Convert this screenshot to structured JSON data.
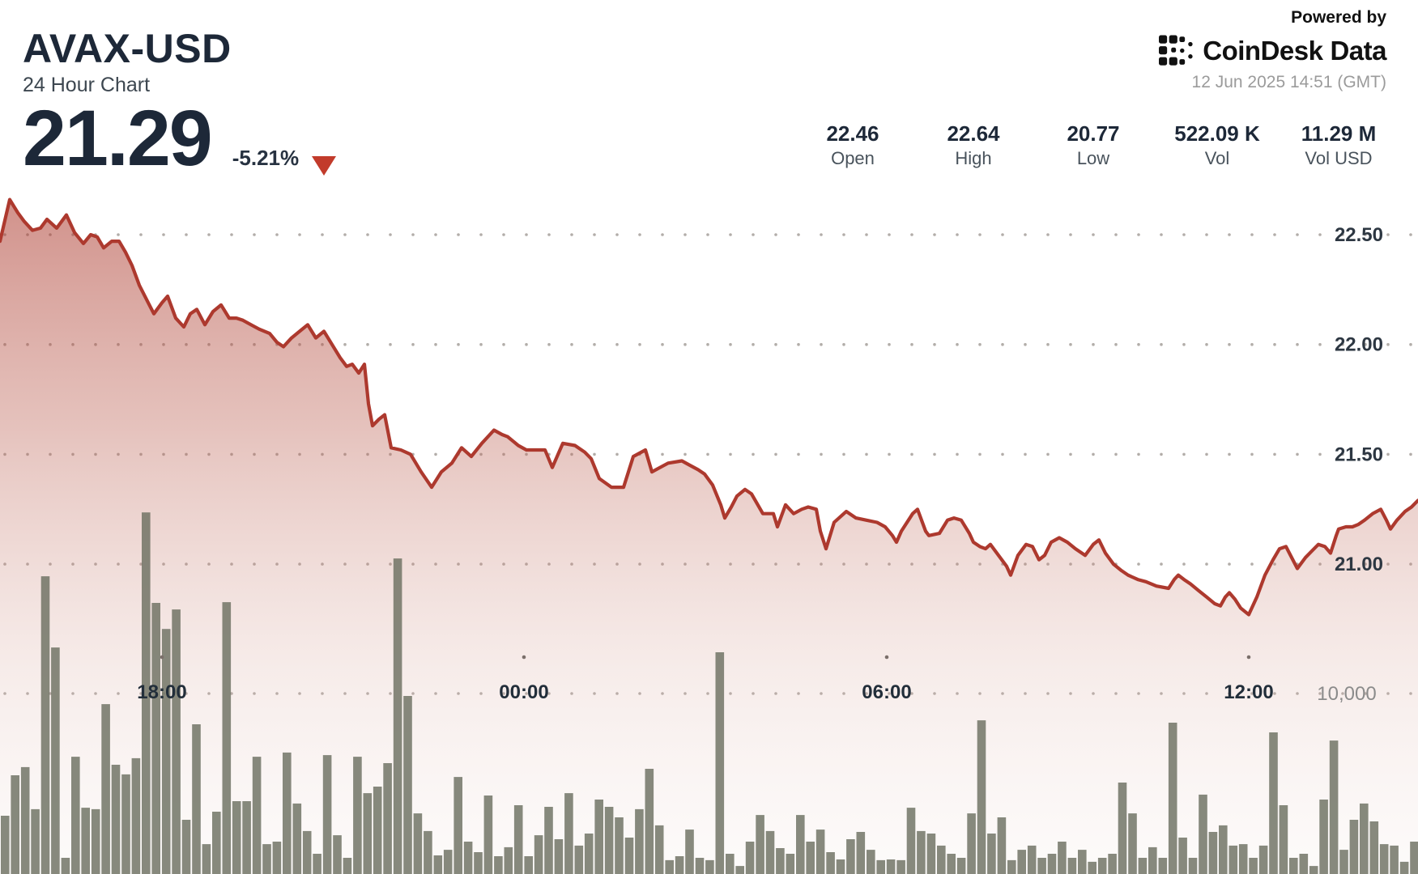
{
  "header": {
    "symbol": "AVAX-USD",
    "subtitle": "24 Hour Chart",
    "price": "21.29",
    "change_pct": "-5.21%",
    "direction_icon": "down-triangle",
    "change_color": "#c23b2b"
  },
  "stats": [
    {
      "value": "22.46",
      "label": "Open"
    },
    {
      "value": "22.64",
      "label": "High"
    },
    {
      "value": "20.77",
      "label": "Low"
    },
    {
      "value": "522.09 K",
      "label": "Vol"
    },
    {
      "value": "11.29 M",
      "label": "Vol USD"
    }
  ],
  "branding": {
    "powered_by": "Powered by",
    "brand_icon": "coindesk-logo-icon",
    "brand_name": "CoinDesk",
    "brand_suffix": "Data",
    "timestamp": "12 Jun 2025 14:51 (GMT)"
  },
  "chart_data": {
    "type": "area+bar",
    "title": "AVAX-USD 24 Hour Chart",
    "open": 22.46,
    "high": 22.64,
    "low": 20.77,
    "close": 21.29,
    "change_pct": -5.21,
    "volume": "522.09 K",
    "volume_usd": "11.29 M",
    "line_color": "#ad392e",
    "bar_color": "#696d5e",
    "grid_dot_color": "#a59f9a",
    "price_axis": {
      "ticks": [
        22.5,
        22.0,
        21.5,
        21.0
      ],
      "labels": [
        "22.50",
        "22.00",
        "21.50",
        "21.00"
      ]
    },
    "time_axis": {
      "labels": [
        "18:00",
        "00:00",
        "06:00",
        "12:00"
      ]
    },
    "volume_axis": {
      "tick": 10000,
      "label": "10,000"
    },
    "ylim": [
      20.6,
      22.75
    ],
    "legend": "none",
    "price_points": [
      [
        0,
        22.47
      ],
      [
        12,
        22.66
      ],
      [
        22,
        22.6
      ],
      [
        30,
        22.56
      ],
      [
        40,
        22.52
      ],
      [
        50,
        22.53
      ],
      [
        58,
        22.57
      ],
      [
        70,
        22.53
      ],
      [
        82,
        22.59
      ],
      [
        92,
        22.51
      ],
      [
        103,
        22.46
      ],
      [
        112,
        22.5
      ],
      [
        120,
        22.49
      ],
      [
        128,
        22.44
      ],
      [
        138,
        22.47
      ],
      [
        147,
        22.47
      ],
      [
        155,
        22.42
      ],
      [
        163,
        22.36
      ],
      [
        172,
        22.27
      ],
      [
        183,
        22.19
      ],
      [
        190,
        22.14
      ],
      [
        200,
        22.19
      ],
      [
        207,
        22.22
      ],
      [
        217,
        22.12
      ],
      [
        227,
        22.08
      ],
      [
        235,
        22.14
      ],
      [
        243,
        22.16
      ],
      [
        253,
        22.09
      ],
      [
        263,
        22.15
      ],
      [
        273,
        22.18
      ],
      [
        283,
        22.12
      ],
      [
        292,
        22.12
      ],
      [
        300,
        22.11
      ],
      [
        310,
        22.09
      ],
      [
        320,
        22.07
      ],
      [
        333,
        22.05
      ],
      [
        342,
        22.01
      ],
      [
        350,
        21.99
      ],
      [
        360,
        22.03
      ],
      [
        370,
        22.06
      ],
      [
        380,
        22.09
      ],
      [
        390,
        22.03
      ],
      [
        400,
        22.06
      ],
      [
        410,
        22.0
      ],
      [
        420,
        21.94
      ],
      [
        428,
        21.9
      ],
      [
        435,
        21.91
      ],
      [
        443,
        21.87
      ],
      [
        450,
        21.91
      ],
      [
        455,
        21.73
      ],
      [
        460,
        21.63
      ],
      [
        468,
        21.66
      ],
      [
        475,
        21.68
      ],
      [
        483,
        21.53
      ],
      [
        495,
        21.52
      ],
      [
        507,
        21.5
      ],
      [
        520,
        21.42
      ],
      [
        533,
        21.35
      ],
      [
        545,
        21.42
      ],
      [
        558,
        21.46
      ],
      [
        570,
        21.53
      ],
      [
        582,
        21.49
      ],
      [
        595,
        21.55
      ],
      [
        610,
        21.61
      ],
      [
        620,
        21.59
      ],
      [
        627,
        21.58
      ],
      [
        640,
        21.54
      ],
      [
        650,
        21.52
      ],
      [
        663,
        21.52
      ],
      [
        673,
        21.52
      ],
      [
        682,
        21.44
      ],
      [
        695,
        21.55
      ],
      [
        710,
        21.54
      ],
      [
        722,
        21.51
      ],
      [
        730,
        21.48
      ],
      [
        740,
        21.39
      ],
      [
        755,
        21.35
      ],
      [
        770,
        21.35
      ],
      [
        782,
        21.49
      ],
      [
        797,
        21.52
      ],
      [
        805,
        21.42
      ],
      [
        815,
        21.44
      ],
      [
        825,
        21.46
      ],
      [
        842,
        21.47
      ],
      [
        852,
        21.45
      ],
      [
        862,
        21.43
      ],
      [
        870,
        21.41
      ],
      [
        880,
        21.36
      ],
      [
        890,
        21.27
      ],
      [
        895,
        21.21
      ],
      [
        903,
        21.26
      ],
      [
        910,
        21.31
      ],
      [
        920,
        21.34
      ],
      [
        928,
        21.32
      ],
      [
        942,
        21.23
      ],
      [
        955,
        21.23
      ],
      [
        960,
        21.17
      ],
      [
        970,
        21.27
      ],
      [
        980,
        21.23
      ],
      [
        990,
        21.25
      ],
      [
        998,
        21.26
      ],
      [
        1008,
        21.25
      ],
      [
        1013,
        21.15
      ],
      [
        1020,
        21.07
      ],
      [
        1030,
        21.19
      ],
      [
        1045,
        21.24
      ],
      [
        1057,
        21.21
      ],
      [
        1070,
        21.2
      ],
      [
        1083,
        21.19
      ],
      [
        1093,
        21.17
      ],
      [
        1102,
        21.13
      ],
      [
        1107,
        21.1
      ],
      [
        1113,
        21.15
      ],
      [
        1127,
        21.23
      ],
      [
        1133,
        21.25
      ],
      [
        1143,
        21.15
      ],
      [
        1147,
        21.13
      ],
      [
        1160,
        21.14
      ],
      [
        1170,
        21.2
      ],
      [
        1178,
        21.21
      ],
      [
        1187,
        21.2
      ],
      [
        1197,
        21.14
      ],
      [
        1202,
        21.1
      ],
      [
        1210,
        21.08
      ],
      [
        1217,
        21.07
      ],
      [
        1223,
        21.09
      ],
      [
        1233,
        21.04
      ],
      [
        1243,
        20.99
      ],
      [
        1248,
        20.95
      ],
      [
        1257,
        21.04
      ],
      [
        1267,
        21.09
      ],
      [
        1275,
        21.08
      ],
      [
        1283,
        21.02
      ],
      [
        1290,
        21.04
      ],
      [
        1298,
        21.1
      ],
      [
        1308,
        21.12
      ],
      [
        1318,
        21.1
      ],
      [
        1328,
        21.07
      ],
      [
        1340,
        21.04
      ],
      [
        1350,
        21.09
      ],
      [
        1357,
        21.11
      ],
      [
        1365,
        21.05
      ],
      [
        1375,
        21.0
      ],
      [
        1385,
        20.97
      ],
      [
        1393,
        20.95
      ],
      [
        1405,
        20.93
      ],
      [
        1415,
        20.92
      ],
      [
        1428,
        20.9
      ],
      [
        1443,
        20.89
      ],
      [
        1450,
        20.93
      ],
      [
        1455,
        20.95
      ],
      [
        1462,
        20.93
      ],
      [
        1470,
        20.91
      ],
      [
        1480,
        20.88
      ],
      [
        1490,
        20.85
      ],
      [
        1500,
        20.82
      ],
      [
        1507,
        20.81
      ],
      [
        1513,
        20.85
      ],
      [
        1518,
        20.87
      ],
      [
        1525,
        20.84
      ],
      [
        1532,
        20.8
      ],
      [
        1542,
        20.77
      ],
      [
        1552,
        20.85
      ],
      [
        1562,
        20.95
      ],
      [
        1572,
        21.02
      ],
      [
        1580,
        21.07
      ],
      [
        1588,
        21.08
      ],
      [
        1595,
        21.03
      ],
      [
        1602,
        20.98
      ],
      [
        1612,
        21.03
      ],
      [
        1620,
        21.06
      ],
      [
        1628,
        21.09
      ],
      [
        1636,
        21.08
      ],
      [
        1643,
        21.05
      ],
      [
        1650,
        21.13
      ],
      [
        1653,
        21.16
      ],
      [
        1662,
        21.17
      ],
      [
        1670,
        21.17
      ],
      [
        1677,
        21.18
      ],
      [
        1685,
        21.2
      ],
      [
        1695,
        21.23
      ],
      [
        1705,
        21.25
      ],
      [
        1712,
        21.2
      ],
      [
        1717,
        21.16
      ],
      [
        1725,
        21.2
      ],
      [
        1735,
        21.24
      ],
      [
        1743,
        21.26
      ],
      [
        1751,
        21.29
      ]
    ],
    "volumes": [
      3200,
      5420,
      5870,
      3560,
      16350,
      12440,
      890,
      6440,
      3640,
      3560,
      9330,
      6000,
      5470,
      6360,
      19860,
      14890,
      13460,
      14530,
      2980,
      8220,
      1640,
      3420,
      14930,
      4000,
      4000,
      6440,
      1640,
      1780,
      6670,
      3870,
      2360,
      1110,
      6530,
      2130,
      890,
      6440,
      4440,
      4800,
      6090,
      17330,
      9780,
      3330,
      2360,
      1020,
      1330,
      5330,
      1780,
      1200,
      4310,
      980,
      1470,
      3780,
      980,
      2130,
      3690,
      1910,
      4440,
      1560,
      2220,
      4090,
      3690,
      3110,
      2000,
      3560,
      5780,
      2670,
      760,
      980,
      2440,
      890,
      760,
      12180,
      1110,
      440,
      1780,
      3240,
      2360,
      1420,
      1110,
      3240,
      1780,
      2440,
      1200,
      800,
      1910,
      2310,
      1330,
      760,
      800,
      760,
      3640,
      2360,
      2220,
      1560,
      1110,
      890,
      3330,
      8440,
      2220,
      3110,
      760,
      1330,
      1560,
      890,
      1110,
      1780,
      890,
      1330,
      670,
      890,
      1110,
      5020,
      3330,
      890,
      1470,
      890,
      8310,
      2000,
      890,
      4360,
      2310,
      2670,
      1560,
      1640,
      890,
      1560,
      7780,
      3780,
      890,
      1110,
      440,
      4090,
      7330,
      1330,
      2980,
      3870,
      2890,
      1640,
      1560,
      670,
      1780
    ]
  }
}
